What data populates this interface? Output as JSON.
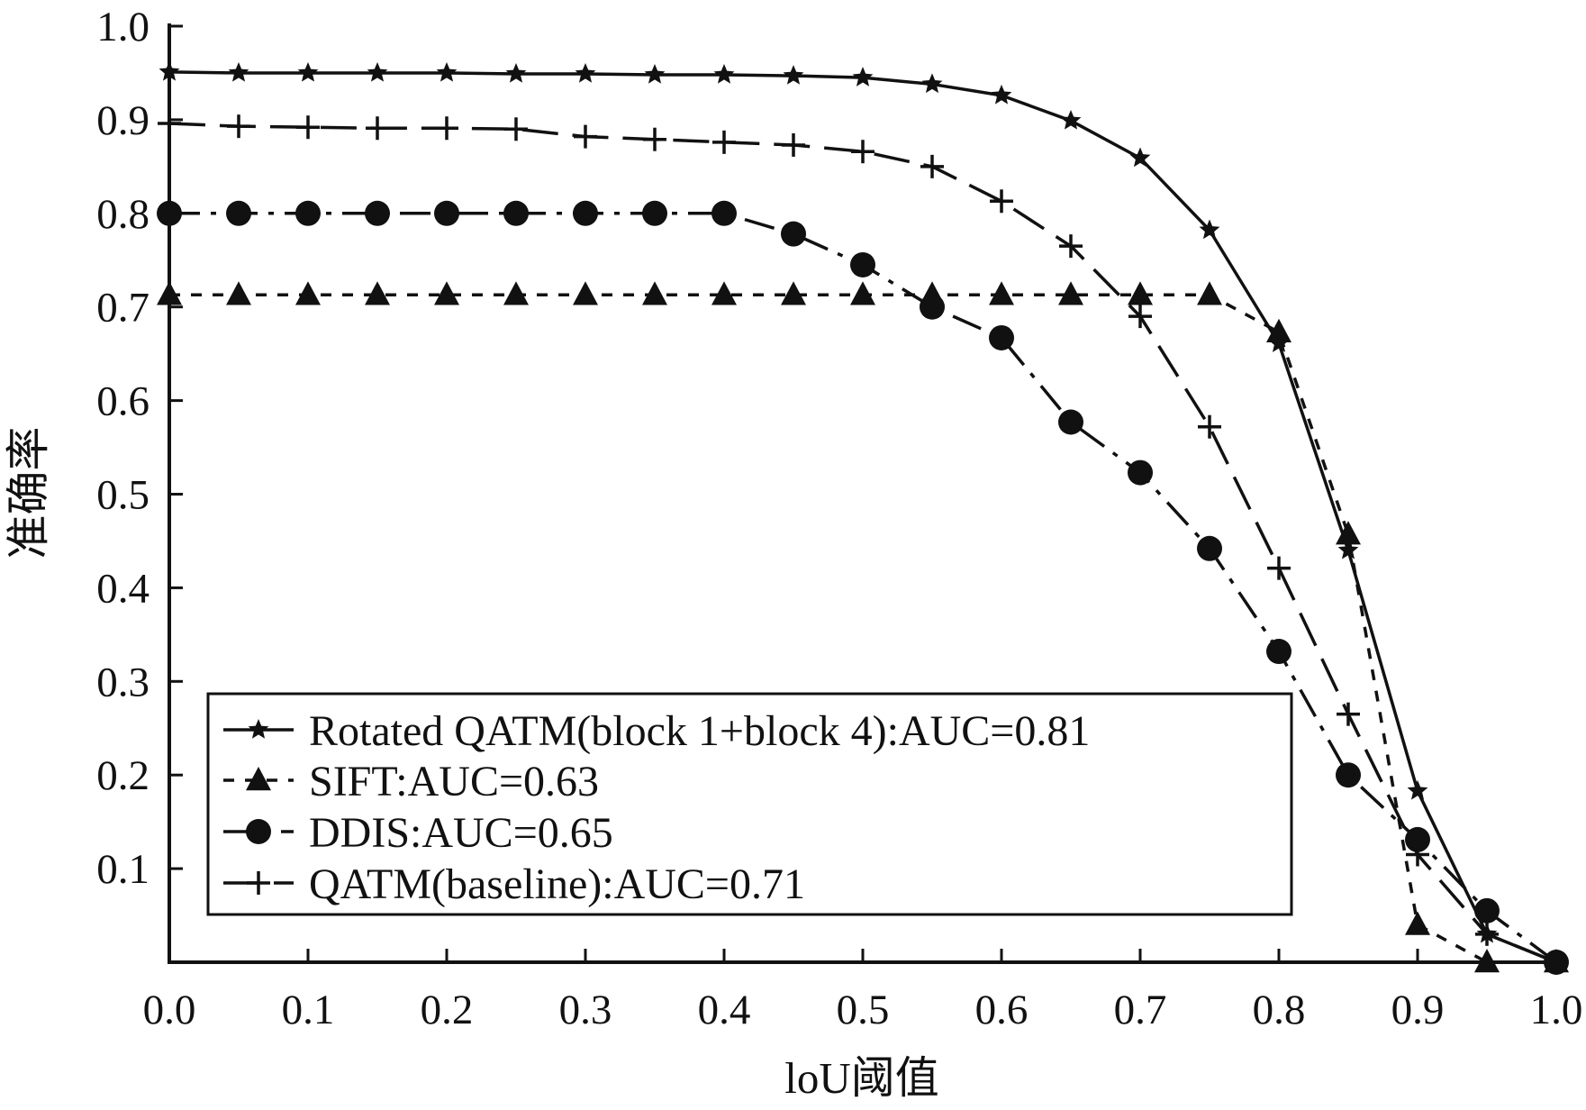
{
  "chart_data": {
    "type": "line",
    "title": "",
    "xlabel": "loU阈值",
    "ylabel": "准确率",
    "xlim": [
      0.0,
      1.0
    ],
    "ylim": [
      0.0,
      1.0
    ],
    "x_ticks": [
      "0.0",
      "0.1",
      "0.2",
      "0.3",
      "0.4",
      "0.5",
      "0.6",
      "0.7",
      "0.8",
      "0.9",
      "1.0"
    ],
    "y_ticks": [
      "0.1",
      "0.2",
      "0.3",
      "0.4",
      "0.5",
      "0.6",
      "0.7",
      "0.8",
      "0.9",
      "1.0"
    ],
    "x": [
      0.0,
      0.05,
      0.1,
      0.15,
      0.2,
      0.25,
      0.3,
      0.35,
      0.4,
      0.45,
      0.5,
      0.55,
      0.6,
      0.65,
      0.7,
      0.75,
      0.8,
      0.85,
      0.9,
      0.95,
      1.0
    ],
    "grid": false,
    "legend_position": "bottom-left",
    "series": [
      {
        "name": "Rotated QATM(block 1+block 4):AUC=0.81",
        "marker": "star",
        "dash": "solid",
        "values": [
          0.951,
          0.95,
          0.95,
          0.95,
          0.95,
          0.949,
          0.949,
          0.948,
          0.948,
          0.947,
          0.945,
          0.938,
          0.926,
          0.899,
          0.859,
          0.782,
          0.661,
          0.44,
          0.183,
          0.03,
          0.0
        ]
      },
      {
        "name": "SIFT:AUC=0.63",
        "marker": "triangle",
        "dash": "short-dash",
        "values": [
          0.713,
          0.713,
          0.713,
          0.713,
          0.713,
          0.713,
          0.713,
          0.713,
          0.713,
          0.713,
          0.713,
          0.713,
          0.713,
          0.713,
          0.713,
          0.713,
          0.673,
          0.457,
          0.04,
          0.0,
          0.0
        ]
      },
      {
        "name": "DDIS:AUC=0.65",
        "marker": "circle",
        "dash": "dash-dot",
        "values": [
          0.8,
          0.8,
          0.8,
          0.8,
          0.8,
          0.8,
          0.8,
          0.8,
          0.8,
          0.778,
          0.745,
          0.7,
          0.667,
          0.577,
          0.523,
          0.442,
          0.332,
          0.2,
          0.131,
          0.055,
          0.0
        ]
      },
      {
        "name": "QATM(baseline):AUC=0.71",
        "marker": "plus",
        "dash": "long-dash",
        "values": [
          0.896,
          0.893,
          0.892,
          0.891,
          0.891,
          0.89,
          0.882,
          0.879,
          0.876,
          0.873,
          0.866,
          0.85,
          0.813,
          0.765,
          0.69,
          0.572,
          0.421,
          0.265,
          0.115,
          0.03,
          0.0
        ]
      }
    ]
  }
}
